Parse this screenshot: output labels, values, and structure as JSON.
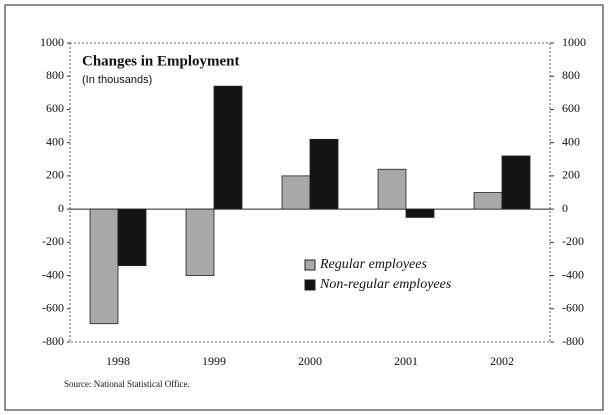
{
  "chart_data": {
    "type": "bar",
    "title": "Changes in Employment",
    "subtitle": "(In thousands)",
    "source": "Source: National Statistical Office.",
    "categories": [
      "1998",
      "1999",
      "2000",
      "2001",
      "2002"
    ],
    "series": [
      {
        "name": "Regular employees",
        "color": "#a8a8a8",
        "values": [
          -690,
          -400,
          200,
          240,
          100
        ]
      },
      {
        "name": "Non-regular employees",
        "color": "#141414",
        "values": [
          -340,
          740,
          420,
          -50,
          320
        ]
      }
    ],
    "ylim": [
      -800,
      1000
    ],
    "yticks": [
      -800,
      -600,
      -400,
      -200,
      0,
      200,
      400,
      600,
      800,
      1000
    ],
    "y2lim": [
      -800,
      1000
    ],
    "y2ticks": [
      -800,
      -600,
      -400,
      -200,
      0,
      200,
      400,
      600,
      800,
      1000
    ]
  }
}
